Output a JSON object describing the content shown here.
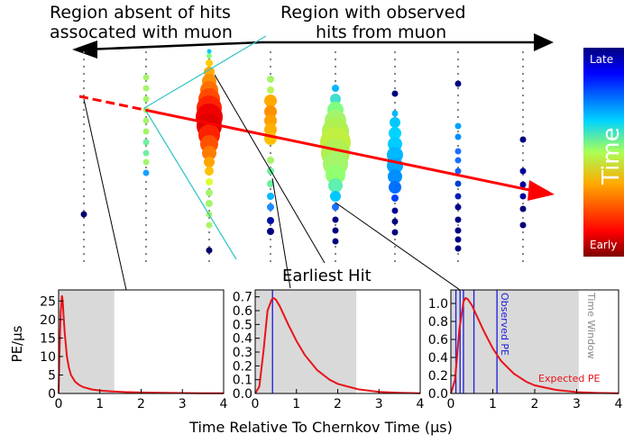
{
  "labels": {
    "region_absent_line1": "Region absent of hits",
    "region_absent_line2": "assocated with muon",
    "region_observed_line1": "Region with observed",
    "region_observed_line2": "hits from muon",
    "earliest_hit": "Earliest Hit",
    "xlabel": "Time Relative To Chernkov Time (µs)",
    "ylabel": "PE/µs",
    "observed_pe": "Observed PE",
    "time_window": "Time Window",
    "expected_pe": "Expected PE"
  },
  "colorbar": {
    "top_label": "Late",
    "bottom_label": "Early",
    "title": "Time"
  },
  "colors": {
    "expected_curve": "#e8141a",
    "observed_lines": "#1a1adc",
    "window_shade": "#d9d9d9",
    "muon_track": "#ff0000",
    "cone_lines": "#39c6c6"
  },
  "chart_data": [
    {
      "type": "line",
      "title": "",
      "xlabel": "",
      "ylabel": "PE/µs",
      "xlim": [
        0,
        4
      ],
      "ylim": [
        0,
        28
      ],
      "xticks": [
        "0",
        "1",
        "2",
        "3",
        "4"
      ],
      "yticks": [
        "0",
        "5",
        "10",
        "15",
        "20",
        "25"
      ],
      "series": [
        {
          "x": [
            0.0,
            0.02,
            0.05,
            0.08,
            0.1,
            0.12,
            0.15,
            0.2,
            0.25,
            0.3,
            0.4,
            0.5,
            0.6,
            0.8,
            1.0,
            1.3,
            1.6,
            2.0,
            2.5,
            3.0,
            3.5,
            4.0
          ],
          "values": [
            0,
            10,
            22,
            26.5,
            25,
            21,
            16,
            10,
            7,
            5,
            3.2,
            2.3,
            1.7,
            1.1,
            0.8,
            0.55,
            0.4,
            0.27,
            0.18,
            0.12,
            0.08,
            0.05
          ]
        }
      ],
      "shaded_window": [
        0,
        1.35
      ]
    },
    {
      "type": "line",
      "title": "",
      "xlabel": "",
      "ylabel": "",
      "xlim": [
        0,
        4
      ],
      "ylim": [
        0,
        0.75
      ],
      "xticks": [
        "0",
        "1",
        "2",
        "3",
        "4"
      ],
      "yticks": [
        "0.0",
        "0.1",
        "0.2",
        "0.3",
        "0.4",
        "0.5",
        "0.6",
        "0.7"
      ],
      "series": [
        {
          "x": [
            0.0,
            0.1,
            0.2,
            0.3,
            0.4,
            0.45,
            0.5,
            0.6,
            0.8,
            1.0,
            1.2,
            1.5,
            1.8,
            2.0,
            2.5,
            3.0,
            3.5,
            4.0
          ],
          "values": [
            0,
            0.05,
            0.3,
            0.6,
            0.68,
            0.69,
            0.68,
            0.63,
            0.5,
            0.38,
            0.28,
            0.17,
            0.1,
            0.07,
            0.03,
            0.012,
            0.005,
            0.002
          ]
        }
      ],
      "shaded_window": [
        0,
        2.45
      ],
      "observed_hits": [
        0.42
      ]
    },
    {
      "type": "line",
      "title": "",
      "xlabel": "",
      "ylabel": "",
      "xlim": [
        0,
        4
      ],
      "ylim": [
        0,
        1.15
      ],
      "xticks": [
        "0",
        "1",
        "2",
        "3",
        "4"
      ],
      "yticks": [
        "0.0",
        "0.2",
        "0.4",
        "0.6",
        "0.8",
        "1.0"
      ],
      "series": [
        {
          "x": [
            0.0,
            0.1,
            0.2,
            0.3,
            0.35,
            0.4,
            0.5,
            0.6,
            0.8,
            1.0,
            1.2,
            1.5,
            1.8,
            2.0,
            2.5,
            3.0,
            3.5,
            4.0
          ],
          "values": [
            0,
            0.15,
            0.7,
            1.02,
            1.06,
            1.05,
            0.98,
            0.88,
            0.68,
            0.5,
            0.36,
            0.22,
            0.13,
            0.09,
            0.04,
            0.015,
            0.006,
            0.002
          ]
        }
      ],
      "shaded_window": [
        0,
        3.05
      ],
      "observed_hits": [
        0.12,
        0.22,
        0.3,
        0.55,
        1.1
      ]
    }
  ]
}
